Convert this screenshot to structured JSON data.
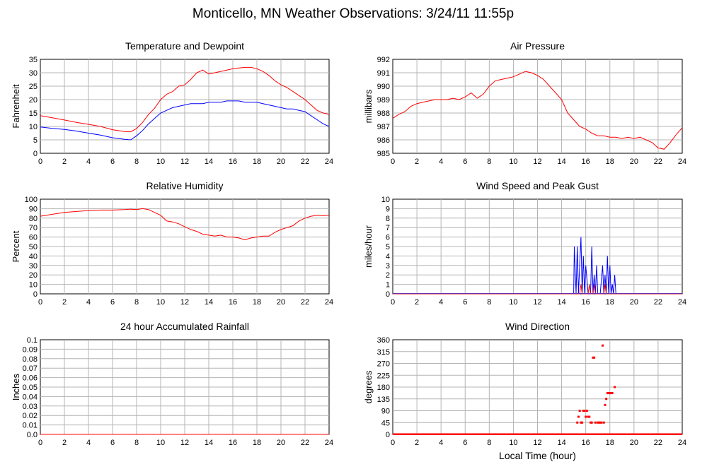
{
  "page_title": "Monticello, MN Weather Observations: 3/24/11 11:55p",
  "chart_data": [
    {
      "id": "temp",
      "type": "line",
      "title": "Temperature and Dewpoint",
      "ylabel": "Fahrenheit",
      "xlabel": "",
      "xlim": [
        0,
        24
      ],
      "ylim": [
        0,
        35
      ],
      "xticks": [
        0,
        2,
        4,
        6,
        8,
        10,
        12,
        14,
        16,
        18,
        20,
        22,
        24
      ],
      "yticks": [
        0,
        5,
        10,
        15,
        20,
        25,
        30,
        35
      ],
      "grid": true,
      "colors": {
        "temperature": "#ff0000",
        "dewpoint": "#0000ff"
      },
      "series": [
        {
          "key": "temperature",
          "x": [
            0,
            1,
            2,
            3,
            4,
            5,
            6,
            7,
            7.5,
            8,
            8.5,
            9,
            9.5,
            10,
            10.5,
            11,
            11.5,
            12,
            12.5,
            13,
            13.5,
            14,
            14.5,
            15,
            15.5,
            16,
            16.5,
            17,
            17.5,
            18,
            18.5,
            19,
            19.5,
            20,
            20.5,
            21,
            21.5,
            22,
            22.5,
            23,
            23.5,
            24
          ],
          "y": [
            14,
            13.2,
            12.4,
            11.5,
            10.8,
            10,
            8.8,
            8.1,
            8,
            9.2,
            11.5,
            14.5,
            16.8,
            20,
            22,
            23,
            25,
            25.5,
            27.5,
            30,
            31,
            29.5,
            30,
            30.5,
            31,
            31.5,
            31.8,
            32,
            32,
            31.5,
            30.5,
            29,
            27,
            25.5,
            24.5,
            23,
            21.5,
            20,
            18,
            16,
            15,
            14.5
          ]
        },
        {
          "key": "dewpoint",
          "x": [
            0,
            1,
            2,
            3,
            4,
            5,
            6,
            7,
            7.5,
            8,
            8.5,
            9,
            9.5,
            10,
            10.5,
            11,
            11.5,
            12,
            12.5,
            13,
            13.5,
            14,
            14.5,
            15,
            15.5,
            16,
            16.5,
            17,
            17.5,
            18,
            18.5,
            19,
            19.5,
            20,
            20.5,
            21,
            21.5,
            22,
            22.5,
            23,
            23.5,
            24
          ],
          "y": [
            9.8,
            9.3,
            8.9,
            8.3,
            7.5,
            6.8,
            5.8,
            5.2,
            5,
            6.5,
            8.5,
            11,
            13,
            15,
            16,
            17,
            17.5,
            18,
            18.5,
            18.5,
            18.5,
            19,
            19,
            19,
            19.5,
            19.5,
            19.5,
            19,
            19,
            19,
            18.5,
            18,
            17.5,
            17,
            16.5,
            16.5,
            16,
            15.5,
            14,
            12.5,
            11,
            10
          ]
        }
      ]
    },
    {
      "id": "pressure",
      "type": "line",
      "title": "Air Pressure",
      "ylabel": "millibars",
      "xlabel": "",
      "xlim": [
        0,
        24
      ],
      "ylim": [
        985,
        992
      ],
      "xticks": [
        0,
        2,
        4,
        6,
        8,
        10,
        12,
        14,
        16,
        18,
        20,
        22,
        24
      ],
      "yticks": [
        985,
        986,
        987,
        988,
        989,
        990,
        991,
        992
      ],
      "grid": true,
      "colors": {
        "pressure": "#ff0000"
      },
      "series": [
        {
          "key": "pressure",
          "x": [
            0,
            0.5,
            1,
            1.5,
            2,
            2.5,
            3,
            3.5,
            4,
            4.5,
            5,
            5.5,
            6,
            6.5,
            7,
            7.5,
            8,
            8.5,
            9,
            9.5,
            10,
            10.5,
            11,
            11.5,
            12,
            12.5,
            13,
            13.5,
            14,
            14.5,
            15,
            15.5,
            16,
            16.5,
            17,
            17.5,
            18,
            18.5,
            19,
            19.5,
            20,
            20.5,
            21,
            21.5,
            22,
            22.5,
            23,
            23.5,
            24
          ],
          "y": [
            987.6,
            987.9,
            988.1,
            988.5,
            988.7,
            988.8,
            988.9,
            989,
            989,
            989,
            989.1,
            989,
            989.2,
            989.5,
            989.1,
            989.4,
            990,
            990.4,
            990.5,
            990.6,
            990.7,
            990.9,
            991.1,
            991,
            990.8,
            990.5,
            990,
            989.5,
            989,
            988,
            987.5,
            987,
            986.8,
            986.5,
            986.3,
            986.3,
            986.2,
            986.2,
            986.1,
            986.2,
            986.1,
            986.2,
            986,
            985.8,
            985.4,
            985.3,
            985.8,
            986.4,
            986.9
          ]
        }
      ]
    },
    {
      "id": "rh",
      "type": "line",
      "title": "Relative Humidity",
      "ylabel": "Percent",
      "xlabel": "",
      "xlim": [
        0,
        24
      ],
      "ylim": [
        0,
        100
      ],
      "xticks": [
        0,
        2,
        4,
        6,
        8,
        10,
        12,
        14,
        16,
        18,
        20,
        22,
        24
      ],
      "yticks": [
        0,
        10,
        20,
        30,
        40,
        50,
        60,
        70,
        80,
        90,
        100
      ],
      "grid": true,
      "colors": {
        "humidity": "#ff0000"
      },
      "series": [
        {
          "key": "humidity",
          "x": [
            0,
            1,
            2,
            3,
            4,
            5,
            6,
            7,
            7.5,
            8,
            8.5,
            9,
            9.5,
            10,
            10.5,
            11,
            11.5,
            12,
            12.5,
            13,
            13.5,
            14,
            14.5,
            15,
            15.5,
            16,
            16.5,
            17,
            17.5,
            18,
            18.5,
            19,
            19.5,
            20,
            20.5,
            21,
            21.5,
            22,
            22.5,
            23,
            23.5,
            24
          ],
          "y": [
            82,
            84,
            86,
            87,
            88,
            88.5,
            88.5,
            89,
            89.5,
            89,
            90,
            89,
            86,
            83,
            77,
            76,
            74,
            71,
            68,
            66,
            63,
            62,
            61,
            62,
            60,
            60,
            59,
            57,
            59,
            60,
            61,
            61,
            65,
            68,
            70,
            72,
            77,
            80,
            82,
            83,
            82.5,
            83
          ]
        }
      ]
    },
    {
      "id": "wind",
      "type": "line",
      "title": "Wind Speed and Peak Gust",
      "ylabel": "miles/hour",
      "xlabel": "",
      "xlim": [
        0,
        24
      ],
      "ylim": [
        0,
        10
      ],
      "xticks": [
        0,
        2,
        4,
        6,
        8,
        10,
        12,
        14,
        16,
        18,
        20,
        22,
        24
      ],
      "yticks": [
        0,
        1,
        2,
        3,
        4,
        5,
        6,
        7,
        8,
        9,
        10
      ],
      "grid": true,
      "colors": {
        "gust": "#0000ff",
        "speed": "#ff0000",
        "baseline": "#6a2fb0"
      },
      "series": [
        {
          "key": "gust",
          "x": [
            0,
            15,
            15.05,
            15.2,
            15.3,
            15.4,
            15.5,
            15.6,
            15.7,
            15.8,
            15.9,
            16.0,
            16.2,
            16.4,
            16.5,
            16.6,
            16.7,
            16.8,
            16.9,
            17.0,
            17.1,
            17.2,
            17.4,
            17.5,
            17.6,
            17.7,
            17.8,
            17.9,
            18.0,
            18.1,
            18.2,
            18.3,
            18.4,
            18.5,
            18.6,
            24
          ],
          "y": [
            0,
            0,
            5,
            0,
            5,
            0,
            3,
            6,
            0,
            4,
            0,
            3,
            0,
            0,
            5,
            0,
            2,
            0,
            3,
            0,
            0,
            0,
            3,
            0,
            2,
            0,
            4,
            0,
            3,
            0,
            1,
            0,
            2,
            0,
            0,
            0
          ]
        },
        {
          "key": "speed",
          "x": [
            0,
            15.5,
            15.6,
            15.7,
            16.2,
            16.3,
            16.4,
            16.6,
            16.7,
            16.8,
            17.5,
            17.6,
            17.7,
            24
          ],
          "y": [
            0,
            0,
            1,
            0,
            0,
            1,
            0,
            0,
            1,
            0,
            0,
            1,
            0,
            0
          ]
        }
      ]
    },
    {
      "id": "rain",
      "type": "line",
      "title": "24 hour Accumulated Rainfall",
      "ylabel": "Inches",
      "xlabel": "",
      "xlim": [
        0,
        24
      ],
      "ylim": [
        0,
        0.1
      ],
      "xticks": [
        0,
        2,
        4,
        6,
        8,
        10,
        12,
        14,
        16,
        18,
        20,
        22,
        24
      ],
      "yticks": [
        0.0,
        0.01,
        0.02,
        0.03,
        0.04,
        0.05,
        0.06,
        0.07,
        0.08,
        0.09,
        0.1
      ],
      "ytick_labels": [
        "0.0",
        "0.01",
        "0.02",
        "0.03",
        "0.04",
        "0.05",
        "0.06",
        "0.07",
        "0.08",
        "0.09",
        "0.1"
      ],
      "grid": true,
      "colors": {
        "rain": "#ff0000"
      },
      "series": [
        {
          "key": "rain",
          "x": [
            0,
            24
          ],
          "y": [
            0,
            0
          ]
        }
      ]
    },
    {
      "id": "winddir",
      "type": "scatter",
      "title": "Wind Direction",
      "ylabel": "degrees",
      "xlabel": "Local Time (hour)",
      "xlim": [
        0,
        24
      ],
      "ylim": [
        0,
        360
      ],
      "xticks": [
        0,
        2,
        4,
        6,
        8,
        10,
        12,
        14,
        16,
        18,
        20,
        22,
        24
      ],
      "yticks": [
        0,
        45,
        90,
        135,
        180,
        225,
        270,
        315,
        360
      ],
      "grid": true,
      "colors": {
        "direction": "#ff0000"
      },
      "baseline": {
        "x": [
          0,
          24
        ],
        "y": 0
      },
      "series": [
        {
          "key": "direction",
          "x": [
            15.3,
            15.4,
            15.5,
            15.6,
            15.7,
            15.8,
            15.9,
            16.0,
            16.1,
            16.2,
            16.3,
            16.4,
            16.5,
            16.6,
            16.7,
            16.8,
            17.0,
            17.1,
            17.2,
            17.3,
            17.4,
            17.5,
            17.6,
            17.7,
            17.8,
            17.9,
            18.0,
            18.1,
            18.2,
            18.4
          ],
          "y": [
            45,
            67,
            90,
            45,
            45,
            90,
            90,
            67,
            90,
            67,
            67,
            45,
            45,
            292,
            292,
            45,
            45,
            45,
            45,
            45,
            338,
            45,
            112,
            135,
            157,
            157,
            157,
            157,
            157,
            180
          ]
        }
      ]
    }
  ]
}
